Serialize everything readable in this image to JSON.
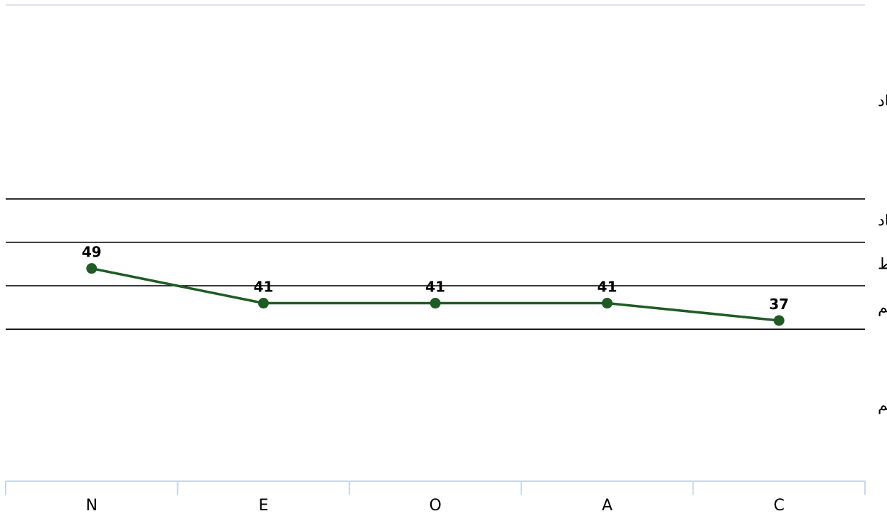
{
  "chart_data": {
    "type": "line",
    "categories": [
      "N",
      "E",
      "O",
      "A",
      "C"
    ],
    "values": [
      49,
      41,
      41,
      41,
      37
    ],
    "ylim": [
      0,
      110
    ],
    "grid": false,
    "band_thresholds": [
      35,
      45,
      55,
      65
    ],
    "band_labels": [
      "خیلی کم",
      "کم",
      "متوسط",
      "زیاد",
      "خیلی زیاد"
    ],
    "line_color": "#1f5c24",
    "band_line_color": "#000000",
    "axis_line_color": "#c9d7e8"
  }
}
